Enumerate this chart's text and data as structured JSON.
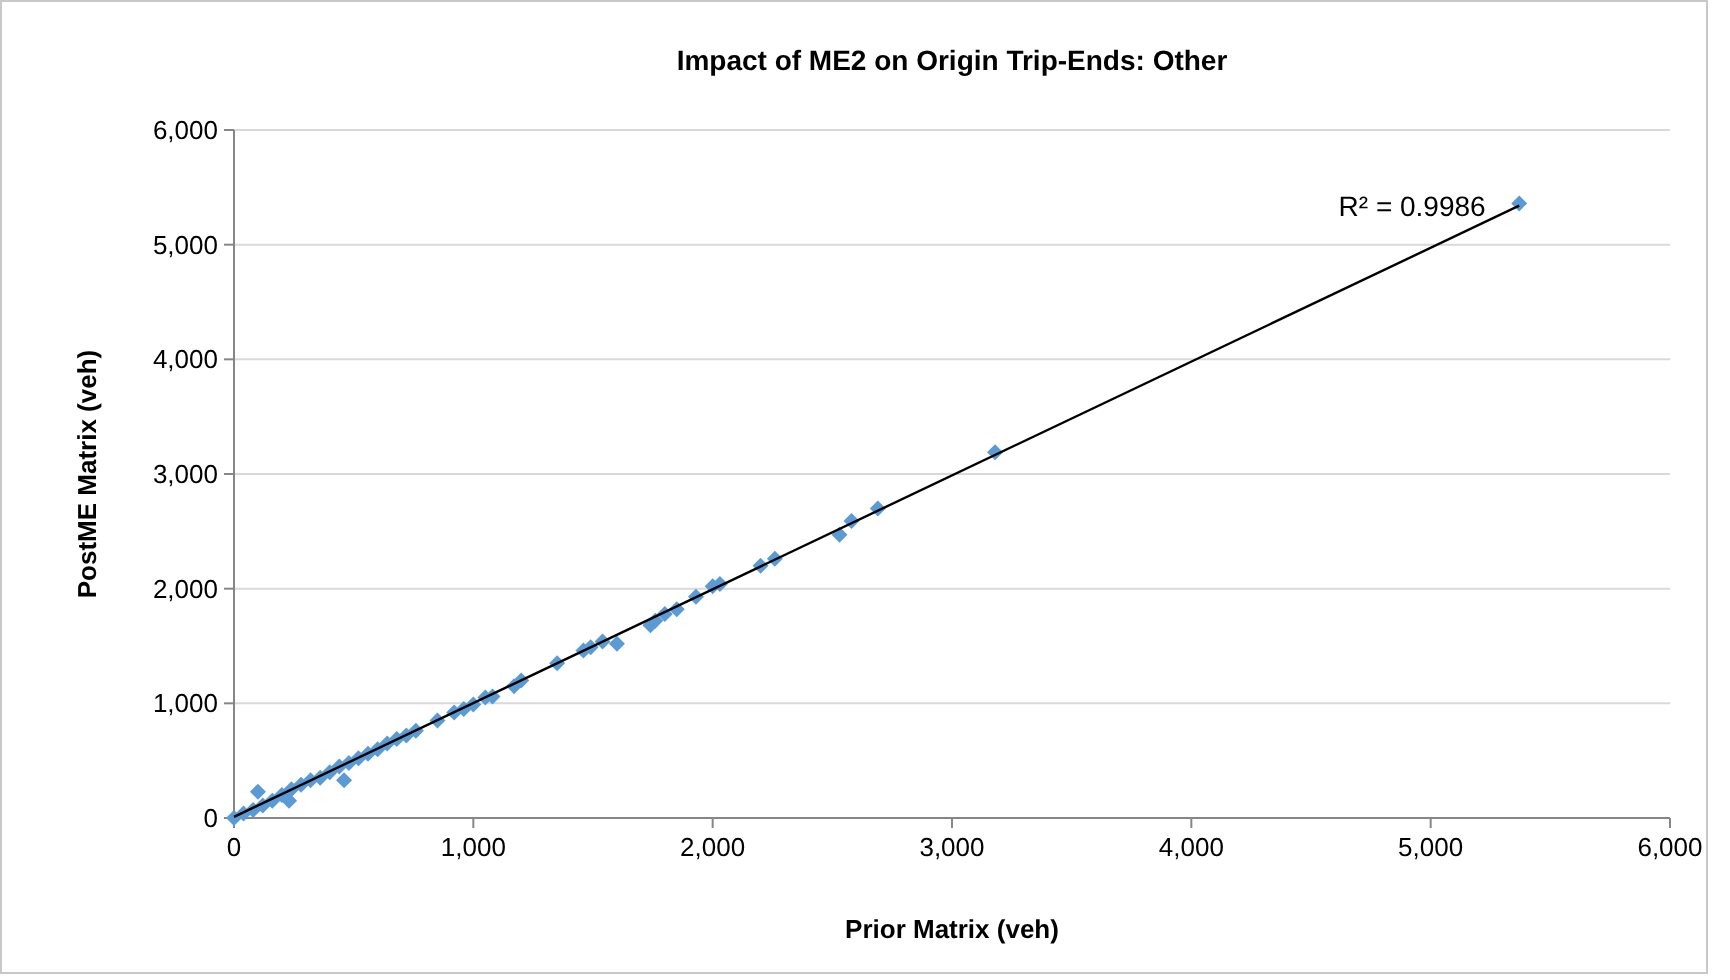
{
  "chart_data": {
    "type": "scatter",
    "title": "Impact of ME2 on Origin Trip-Ends: Other",
    "xlabel": "Prior Matrix (veh)",
    "ylabel": "PostME Matrix (veh)",
    "xlim": [
      0,
      6000
    ],
    "ylim": [
      0,
      6000
    ],
    "xticks": [
      {
        "value": 0,
        "label": "0"
      },
      {
        "value": 1000,
        "label": "1,000"
      },
      {
        "value": 2000,
        "label": "2,000"
      },
      {
        "value": 3000,
        "label": "3,000"
      },
      {
        "value": 4000,
        "label": "4,000"
      },
      {
        "value": 5000,
        "label": "5,000"
      },
      {
        "value": 6000,
        "label": "6,000"
      }
    ],
    "yticks": [
      {
        "value": 0,
        "label": "0"
      },
      {
        "value": 1000,
        "label": "1,000"
      },
      {
        "value": 2000,
        "label": "2,000"
      },
      {
        "value": 3000,
        "label": "3,000"
      },
      {
        "value": 4000,
        "label": "4,000"
      },
      {
        "value": 5000,
        "label": "5,000"
      },
      {
        "value": 6000,
        "label": "6,000"
      }
    ],
    "grid": "y",
    "marker": "diamond",
    "series": [
      {
        "color": "#5b9bd5",
        "x": [
          0,
          40,
          80,
          120,
          160,
          200,
          240,
          280,
          320,
          360,
          400,
          440,
          480,
          520,
          560,
          600,
          640,
          680,
          720,
          760,
          850,
          920,
          960,
          1000,
          1050,
          1080,
          1170,
          1200,
          1350,
          1460,
          1490,
          1540,
          1600,
          1740,
          1760,
          1800,
          1850,
          1930,
          2000,
          2030,
          2200,
          2260,
          2530,
          2580,
          2690,
          3180,
          5370,
          100,
          460,
          230
        ],
        "values": [
          0,
          40,
          70,
          110,
          150,
          200,
          250,
          290,
          330,
          350,
          400,
          450,
          480,
          520,
          560,
          600,
          650,
          690,
          720,
          760,
          850,
          920,
          950,
          990,
          1050,
          1060,
          1150,
          1200,
          1350,
          1460,
          1490,
          1540,
          1520,
          1680,
          1720,
          1780,
          1820,
          1930,
          2020,
          2040,
          2200,
          2260,
          2470,
          2590,
          2700,
          3190,
          5360,
          230,
          330,
          150
        ]
      },
      {
        "type": "line",
        "marker": "none",
        "color": "#000000",
        "x": [
          0,
          5370
        ],
        "values": [
          10,
          5340
        ]
      }
    ],
    "annotations": [
      {
        "text": "R² = 0.9986",
        "x": 5230,
        "y": 5250
      }
    ]
  }
}
